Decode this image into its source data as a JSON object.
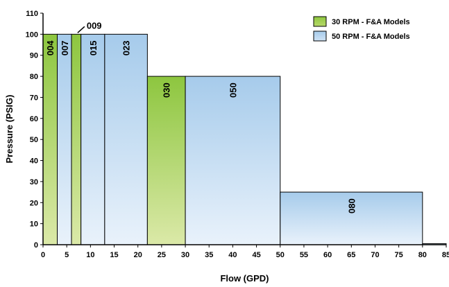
{
  "chart_data": {
    "type": "bar",
    "xlabel": "Flow (GPD)",
    "ylabel": "Pressure (PSIG)",
    "xlim": [
      0,
      85
    ],
    "ylim": [
      0,
      110
    ],
    "x_ticks": [
      0,
      5,
      10,
      15,
      20,
      25,
      30,
      35,
      40,
      45,
      50,
      55,
      60,
      65,
      70,
      75,
      80,
      85
    ],
    "y_ticks": [
      0,
      10,
      20,
      30,
      40,
      50,
      60,
      70,
      80,
      90,
      100,
      110
    ],
    "grid": false,
    "legend_position": "top-right",
    "series": [
      {
        "name": "30 RPM - F&A Models",
        "color": "#8dc63f"
      },
      {
        "name": "50 RPM - F&A Models",
        "color": "#a6cbeb"
      }
    ],
    "bars": [
      {
        "label": "004",
        "series": 0,
        "x_start": 0,
        "x_end": 3,
        "value": 100
      },
      {
        "label": "007",
        "series": 1,
        "x_start": 3,
        "x_end": 6,
        "value": 100
      },
      {
        "label": "009",
        "series": 0,
        "x_start": 6,
        "x_end": 8,
        "value": 100
      },
      {
        "label": "015",
        "series": 1,
        "x_start": 8,
        "x_end": 13,
        "value": 100
      },
      {
        "label": "023",
        "series": 1,
        "x_start": 13,
        "x_end": 22,
        "value": 100
      },
      {
        "label": "030",
        "series": 0,
        "x_start": 22,
        "x_end": 30,
        "value": 80
      },
      {
        "label": "050",
        "series": 1,
        "x_start": 30,
        "x_end": 50,
        "value": 80
      },
      {
        "label": "080",
        "series": 1,
        "x_start": 50,
        "x_end": 80,
        "value": 25
      },
      {
        "label": "",
        "series": 1,
        "x_start": 80,
        "x_end": 85,
        "value": 0.5
      }
    ]
  }
}
